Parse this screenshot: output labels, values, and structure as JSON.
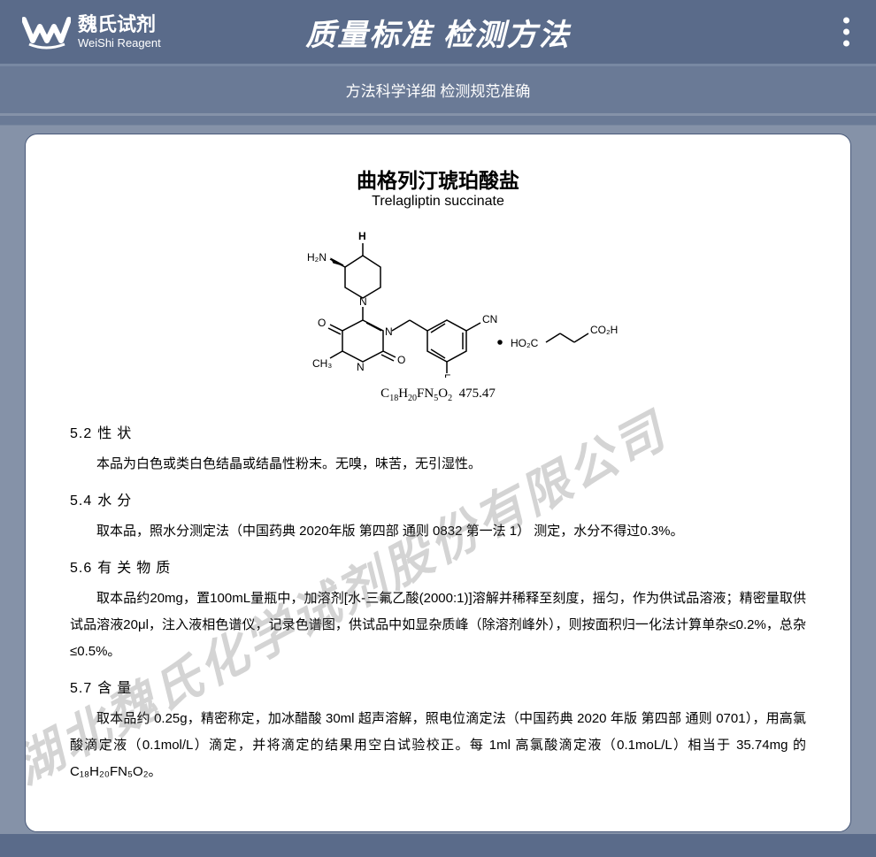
{
  "header": {
    "logo_cn": "魏氏试剂",
    "logo_en": "WeiShi Reagent",
    "title": "质量标准 检测方法",
    "subtitle": "方法科学详细 检测规范准确"
  },
  "document": {
    "title_cn": "曲格列汀琥珀酸盐",
    "title_en": "Trelagliptin succinate",
    "molecular_formula": "C₁₈H₂₀FN₅O₂",
    "molecular_weight": "475.47",
    "watermark": "湖北魏氏化学试剂股份有限公司",
    "sections": [
      {
        "num": "5.2",
        "title": "性状",
        "body": "本品为白色或类白色结晶或结晶性粉末。无嗅，味苦，无引湿性。"
      },
      {
        "num": "5.4",
        "title": "水分",
        "body": "取本品，照水分测定法（中国药典 2020年版 第四部 通则 0832 第一法 1） 测定，水分不得过0.3%。"
      },
      {
        "num": "5.6",
        "title": "有关物质",
        "body": "取本品约20mg，置100mL量瓶中，加溶剂[水-三氟乙酸(2000:1)]溶解并稀释至刻度，摇匀，作为供试品溶液；精密量取供试品溶液20μl，注入液相色谱仪，记录色谱图，供试品中如显杂质峰（除溶剂峰外），则按面积归一化法计算单杂≤0.2%，总杂≤0.5%。"
      },
      {
        "num": "5.7",
        "title": "含量",
        "body": "取本品约 0.25g，精密称定，加冰醋酸 30ml 超声溶解，照电位滴定法（中国药典 2020 年版 第四部 通则 0701），用高氯酸滴定液（0.1mol/L）滴定，并将滴定的结果用空白试验校正。每 1ml 高氯酸滴定液（0.1moL/L）相当于 35.74mg 的 C₁₈H₂₀FN₅O₂。"
      }
    ]
  },
  "styling": {
    "header_bg": "#5a6b8a",
    "subtitle_bg": "#6a7a96",
    "body_bg": "#8592a8",
    "doc_bg": "#ffffff",
    "text_color": "#000000",
    "watermark_color": "rgba(100,100,100,0.28)"
  }
}
